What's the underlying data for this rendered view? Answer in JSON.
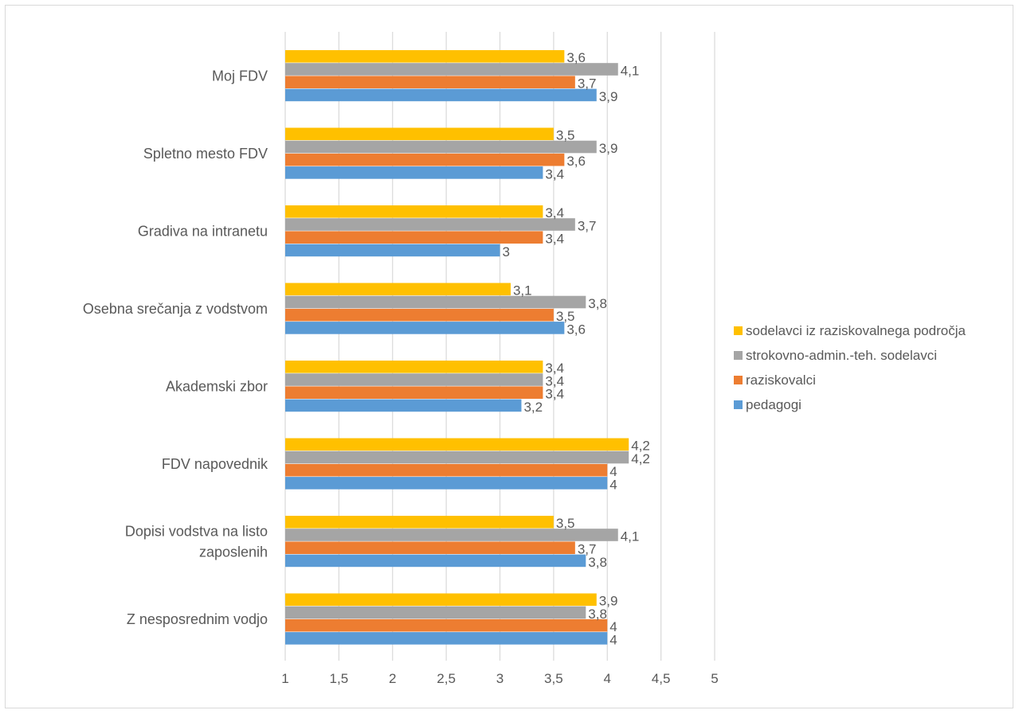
{
  "chart_data": {
    "type": "bar",
    "orientation": "horizontal",
    "categories": [
      "Moj FDV",
      "Spletno mesto FDV",
      "Gradiva na intranetu",
      "Osebna srečanja z vodstvom",
      "Akademski zbor",
      "FDV napovednik",
      "Dopisi vodstva na listo zaposlenih",
      "Z nesposrednim vodjo"
    ],
    "category_lines": [
      [
        "Moj FDV"
      ],
      [
        "Spletno mesto FDV"
      ],
      [
        "Gradiva na intranetu"
      ],
      [
        "Osebna srečanja z vodstvom"
      ],
      [
        "Akademski zbor"
      ],
      [
        "FDV napovednik"
      ],
      [
        "Dopisi vodstva na listo",
        "zaposlenih"
      ],
      [
        "Z nesposrednim vodjo"
      ]
    ],
    "series": [
      {
        "name": "sodelavci iz raziskovalnega področja",
        "color": "#FFC000",
        "values": [
          3.6,
          3.5,
          3.4,
          3.1,
          3.4,
          4.2,
          3.5,
          3.9
        ]
      },
      {
        "name": "strokovno-admin.-teh. sodelavci",
        "color": "#A5A5A5",
        "values": [
          4.1,
          3.9,
          3.7,
          3.8,
          3.4,
          4.2,
          4.1,
          3.8
        ]
      },
      {
        "name": "raziskovalci",
        "color": "#ED7D31",
        "values": [
          3.7,
          3.6,
          3.4,
          3.5,
          3.4,
          4.0,
          3.7,
          4.0
        ]
      },
      {
        "name": "pedagogi",
        "color": "#5B9BD5",
        "values": [
          3.9,
          3.4,
          3.0,
          3.6,
          3.2,
          4.0,
          3.8,
          4.0
        ]
      }
    ],
    "xlim": [
      1,
      5
    ],
    "xticks": [
      1,
      1.5,
      2,
      2.5,
      3,
      3.5,
      4,
      4.5,
      5
    ],
    "decimal_separator": ",",
    "grid": "vertical",
    "legend_position": "right",
    "title": "",
    "xlabel": "",
    "ylabel": ""
  }
}
